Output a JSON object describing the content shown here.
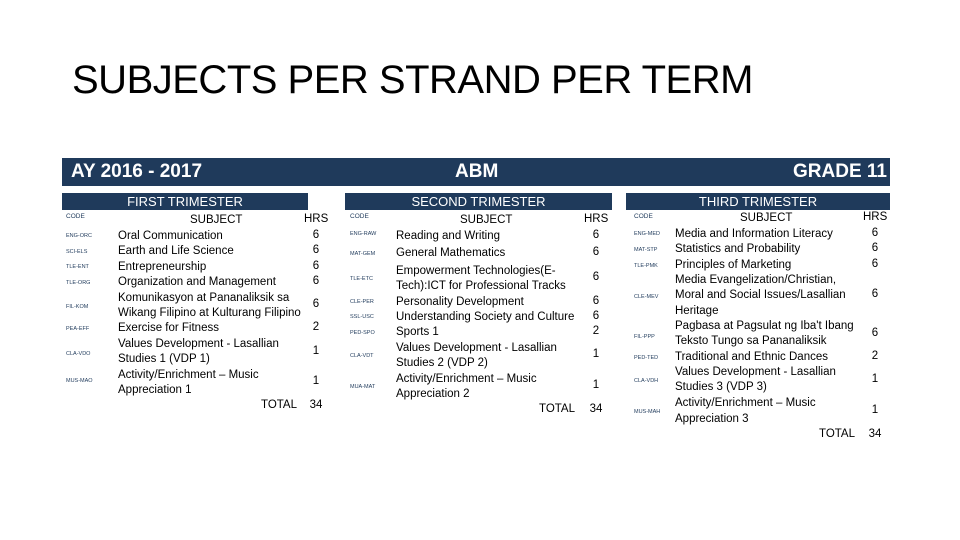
{
  "title": "SUBJECTS PER STRAND PER TERM",
  "banner": {
    "academic_year": "AY 2016 - 2017",
    "strand": "ABM",
    "grade": "GRADE 11"
  },
  "colors": {
    "banner_bg": "#1f3a5b",
    "banner_text": "#ffffff"
  },
  "terms": [
    {
      "heading": "FIRST TRIMESTER",
      "code_header": "CODE",
      "subject_header": "SUBJECT",
      "hrs_header": "HRS",
      "rows": [
        {
          "code": "ENG-ORC",
          "subject": "Oral Communication",
          "hrs": "6"
        },
        {
          "code": "SCI-ELS",
          "subject": "Earth and Life Science",
          "hrs": "6"
        },
        {
          "code": "TLE-ENT",
          "subject": "Entrepreneurship",
          "hrs": "6"
        },
        {
          "code": "TLE-ORG",
          "subject": "Organization and Management",
          "hrs": "6"
        },
        {
          "code": "FIL-KOM",
          "subject": "Komunikasyon at Pananaliksik sa",
          "subject2": "Wikang Filipino at Kulturang Filipino",
          "hrs": "6"
        },
        {
          "code": "PEA-EFF",
          "subject": "Exercise for Fitness",
          "hrs": "2"
        },
        {
          "code": "CLA-VDO",
          "subject": "Values Development - Lasallian",
          "subject2": "Studies 1 (VDP 1)",
          "hrs": "1"
        },
        {
          "code": "MUS-MAO",
          "subject": "Activity/Enrichment – Music",
          "subject2": "Appreciation 1",
          "hrs": "1"
        }
      ],
      "total_label": "TOTAL",
      "total": "34"
    },
    {
      "heading": "SECOND TRIMESTER",
      "code_header": "CODE",
      "subject_header": "SUBJECT",
      "hrs_header": "HRS",
      "rows": [
        {
          "code": "ENG-RAW",
          "subject": "Reading and Writing",
          "hrs": "6"
        },
        {
          "code": "MAT-GEM",
          "subject": "General Mathematics",
          "hrs": "6"
        },
        {
          "code": "TLE-ETC",
          "subject": "Empowerment Technologies(E-",
          "subject2": "Tech):ICT for Professional Tracks",
          "hrs": "6"
        },
        {
          "code": "CLE-PER",
          "subject": "Personality Development",
          "hrs": "6"
        },
        {
          "code": "SSL-USC",
          "subject": "Understanding Society and Culture",
          "hrs": "6"
        },
        {
          "code": "PED-SPO",
          "subject": "Sports 1",
          "hrs": "2"
        },
        {
          "code": "CLA-VDT",
          "subject": "Values Development - Lasallian",
          "subject2": "Studies 2 (VDP 2)",
          "hrs": "1"
        },
        {
          "code": "MUA-MAT",
          "subject": "Activity/Enrichment – Music",
          "subject2": "Appreciation 2",
          "hrs": "1"
        }
      ],
      "total_label": "TOTAL",
      "total": "34"
    },
    {
      "heading": "THIRD TRIMESTER",
      "code_header": "CODE",
      "subject_header": "SUBJECT",
      "hrs_header": "HRS",
      "rows": [
        {
          "code": "ENG-MED",
          "subject": "Media and Information Literacy",
          "hrs": "6"
        },
        {
          "code": "MAT-STP",
          "subject": "Statistics and Probability",
          "hrs": "6"
        },
        {
          "code": "TLE-PMK",
          "subject": "Principles of Marketing",
          "hrs": "6"
        },
        {
          "code": "CLE-MEV",
          "subject": "Media Evangelization/Christian,",
          "subject2": "Moral and Social Issues/Lasallian",
          "subject3": "Heritage",
          "hrs": "6"
        },
        {
          "code": "FIL-PPP",
          "subject": "Pagbasa at Pagsulat ng Iba't Ibang",
          "subject2": "Teksto Tungo sa Pananaliksik",
          "hrs": "6"
        },
        {
          "code": "PED-TED",
          "subject": "Traditional and Ethnic Dances",
          "hrs": "2"
        },
        {
          "code": "CLA-VDH",
          "subject": "Values Development - Lasallian",
          "subject2": "Studies 3 (VDP 3)",
          "hrs": "1"
        },
        {
          "code": "MUS-MAH",
          "subject": "Activity/Enrichment – Music",
          "subject2": "Appreciation 3",
          "hrs": "1"
        }
      ],
      "total_label": "TOTAL",
      "total": "34"
    }
  ]
}
